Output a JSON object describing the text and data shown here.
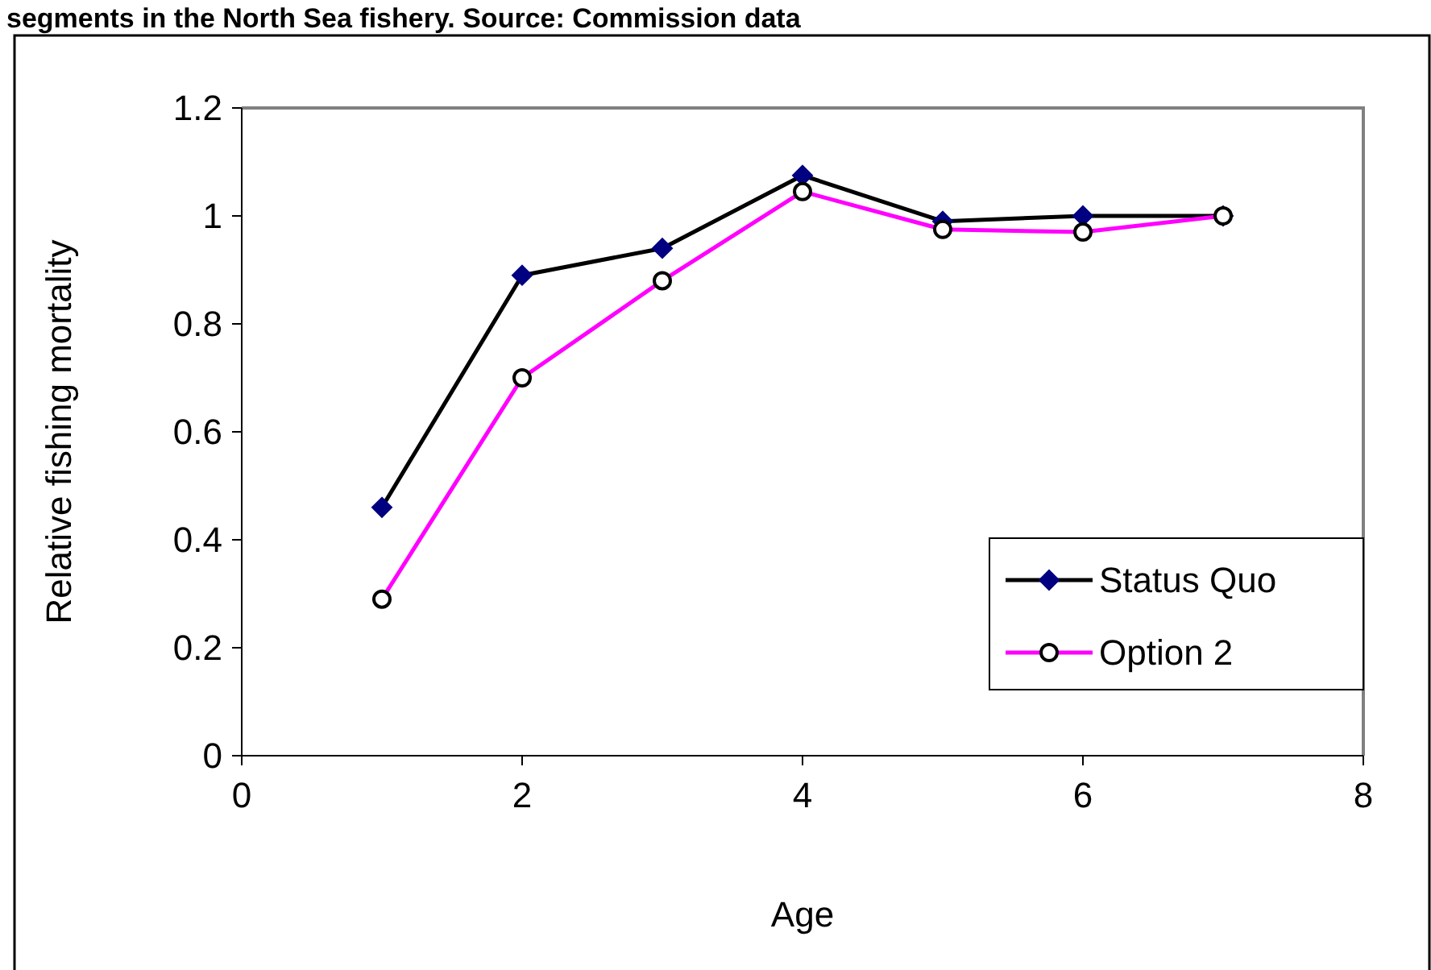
{
  "chart_data": {
    "type": "line",
    "title": "segments in the North Sea fishery. Source: Commission data",
    "xlabel": "Age",
    "ylabel": "Relative fishing mortality",
    "x": [
      1,
      2,
      3,
      4,
      5,
      6,
      7
    ],
    "series": [
      {
        "name": "Status Quo",
        "color": "#000000",
        "marker": "diamond",
        "values": [
          0.46,
          0.89,
          0.94,
          1.075,
          0.99,
          1.0,
          1.0
        ]
      },
      {
        "name": "Option 2",
        "color": "#ff00ff",
        "marker": "circle",
        "values": [
          0.29,
          0.7,
          0.88,
          1.045,
          0.975,
          0.97,
          1.0
        ]
      }
    ],
    "xlim": [
      0,
      8
    ],
    "xticks": [
      0,
      2,
      4,
      6,
      8
    ],
    "ylim": [
      0,
      1.2
    ],
    "yticks": [
      0,
      0.2,
      0.4,
      0.6,
      0.8,
      1,
      1.2
    ],
    "grid": false,
    "legend": "bottom right"
  }
}
